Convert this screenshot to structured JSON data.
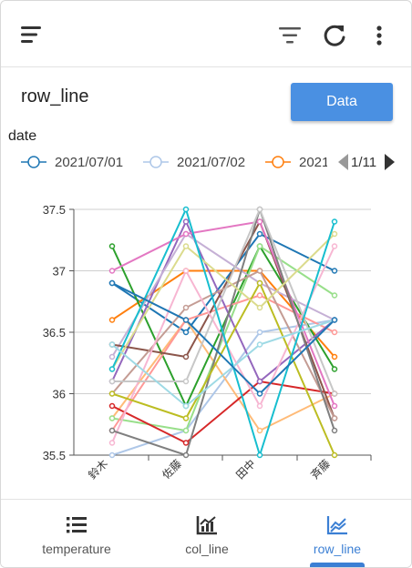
{
  "title": "row_line",
  "data_button": "Data",
  "legend": {
    "title": "date",
    "items": [
      {
        "label": "2021/07/01",
        "color": "#1f77b4"
      },
      {
        "label": "2021/07/02",
        "color": "#aec7e8"
      },
      {
        "label": "2021",
        "color": "#ff7f0e"
      }
    ],
    "page": "1/11"
  },
  "icons": {
    "menu": "menu-icon",
    "filter": "filter-icon",
    "refresh": "refresh-icon",
    "more": "more-vert-icon"
  },
  "nav": [
    {
      "label": "temperature",
      "icon": "list-icon",
      "active": false
    },
    {
      "label": "col_line",
      "icon": "chart-bar-icon",
      "active": false
    },
    {
      "label": "row_line",
      "icon": "chart-line-icon",
      "active": true
    }
  ],
  "chart_data": {
    "type": "line",
    "categories": [
      "鈴木",
      "佐藤",
      "田中",
      "斉藤"
    ],
    "ylim": [
      35.5,
      37.5
    ],
    "yticks": [
      "35.5",
      "36",
      "36.5",
      "37",
      "37.5"
    ],
    "grid": true,
    "series": [
      {
        "color": "#1f77b4",
        "values": [
          36.9,
          36.5,
          37.3,
          37.0
        ]
      },
      {
        "color": "#aec7e8",
        "values": [
          35.5,
          35.7,
          36.5,
          36.6
        ]
      },
      {
        "color": "#ff7f0e",
        "values": [
          36.6,
          37.0,
          37.0,
          36.3
        ]
      },
      {
        "color": "#ffbb78",
        "values": [
          35.8,
          36.6,
          35.7,
          36.0
        ]
      },
      {
        "color": "#2ca02c",
        "values": [
          37.2,
          35.9,
          37.2,
          36.2
        ]
      },
      {
        "color": "#98df8a",
        "values": [
          35.8,
          35.7,
          37.2,
          36.8
        ]
      },
      {
        "color": "#d62728",
        "values": [
          35.9,
          35.6,
          36.1,
          36.0
        ]
      },
      {
        "color": "#ff9896",
        "values": [
          35.7,
          36.6,
          36.8,
          36.5
        ]
      },
      {
        "color": "#9467bd",
        "values": [
          36.1,
          37.4,
          36.1,
          36.6
        ]
      },
      {
        "color": "#c5b0d5",
        "values": [
          36.3,
          37.3,
          36.9,
          36.6
        ]
      },
      {
        "color": "#8c564b",
        "values": [
          36.4,
          36.3,
          37.4,
          35.8
        ]
      },
      {
        "color": "#c49c94",
        "values": [
          36.0,
          36.7,
          37.0,
          35.8
        ]
      },
      {
        "color": "#e377c2",
        "values": [
          37.0,
          37.3,
          37.4,
          35.9
        ]
      },
      {
        "color": "#f7b6d2",
        "values": [
          35.6,
          37.0,
          35.9,
          37.2
        ]
      },
      {
        "color": "#7f7f7f",
        "values": [
          35.7,
          35.5,
          37.5,
          35.7
        ]
      },
      {
        "color": "#c7c7c7",
        "values": [
          36.1,
          36.1,
          37.5,
          36.0
        ]
      },
      {
        "color": "#bcbd22",
        "values": [
          36.0,
          35.8,
          36.9,
          35.5
        ]
      },
      {
        "color": "#dbdb8d",
        "values": [
          36.2,
          37.2,
          36.7,
          37.3
        ]
      },
      {
        "color": "#17becf",
        "values": [
          36.2,
          37.5,
          35.5,
          37.4
        ]
      },
      {
        "color": "#9edae5",
        "values": [
          36.4,
          35.9,
          36.4,
          36.6
        ]
      },
      {
        "color": "#1f77b4",
        "values": [
          36.9,
          36.6,
          36.0,
          36.6
        ]
      }
    ]
  }
}
